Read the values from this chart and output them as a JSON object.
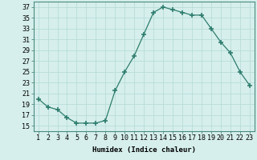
{
  "x": [
    1,
    2,
    3,
    4,
    5,
    6,
    7,
    8,
    9,
    10,
    11,
    12,
    13,
    14,
    15,
    16,
    17,
    18,
    19,
    20,
    21,
    22,
    23
  ],
  "y": [
    20,
    18.5,
    18,
    16.5,
    15.5,
    15.5,
    15.5,
    16,
    21.5,
    25,
    28,
    32,
    36,
    37,
    36.5,
    36,
    35.5,
    35.5,
    33,
    30.5,
    28.5,
    25,
    22.5
  ],
  "line_color": "#2e7d6e",
  "marker": "+",
  "marker_size": 4,
  "bg_color": "#d6efec",
  "grid_color": "#b8ddd9",
  "xlabel": "Humidex (Indice chaleur)",
  "ylim": [
    14,
    38
  ],
  "yticks": [
    15,
    17,
    19,
    21,
    23,
    25,
    27,
    29,
    31,
    33,
    35,
    37
  ],
  "xticks": [
    1,
    2,
    3,
    4,
    5,
    6,
    7,
    8,
    9,
    10,
    11,
    12,
    13,
    14,
    15,
    16,
    17,
    18,
    19,
    20,
    21,
    22,
    23
  ],
  "xlabel_fontsize": 6.5,
  "tick_fontsize": 6
}
